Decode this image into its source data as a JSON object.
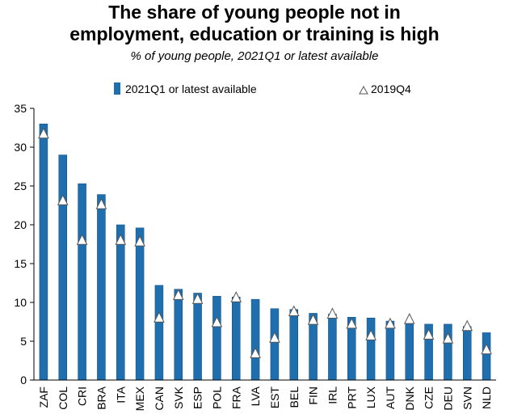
{
  "chart_data": {
    "type": "bar",
    "title_line1": "The share of young people not in",
    "title_line2": "employment, education or training is high",
    "subtitle": "% of young people, 2021Q1 or latest available",
    "categories": [
      "ZAF",
      "COL",
      "CRI",
      "BRA",
      "ITA",
      "MEX",
      "CAN",
      "SVK",
      "ESP",
      "POL",
      "FRA",
      "LVA",
      "EST",
      "BEL",
      "FIN",
      "IRL",
      "PRT",
      "LUX",
      "AUT",
      "DNK",
      "CZE",
      "DEU",
      "SVN",
      "NLD"
    ],
    "series": [
      {
        "name": "2021Q1 or latest available",
        "marker": "bar",
        "values": [
          33.0,
          29.0,
          25.3,
          23.9,
          20.0,
          19.6,
          12.2,
          11.7,
          11.2,
          10.8,
          10.7,
          10.4,
          9.2,
          9.1,
          8.6,
          8.5,
          8.1,
          8.0,
          7.6,
          7.5,
          7.2,
          7.2,
          6.9,
          6.1
        ]
      },
      {
        "name": "2019Q4",
        "marker": "triangle",
        "values": [
          31.8,
          23.2,
          18.1,
          22.7,
          18.1,
          17.9,
          8.1,
          11.0,
          10.5,
          7.5,
          10.7,
          3.5,
          5.5,
          8.9,
          7.8,
          8.6,
          7.3,
          5.8,
          7.3,
          7.9,
          5.9,
          5.4,
          7.0,
          4.0
        ]
      }
    ],
    "ylim": [
      0,
      35
    ],
    "yticks": [
      0,
      5,
      10,
      15,
      20,
      25,
      30,
      35
    ],
    "grid": false,
    "legend": "top"
  },
  "colors": {
    "bar": "#1f6fae",
    "bar_edge": "#0f4d80",
    "triangle_fill": "#ffffff",
    "triangle_stroke": "#555555",
    "axis": "#000000"
  }
}
